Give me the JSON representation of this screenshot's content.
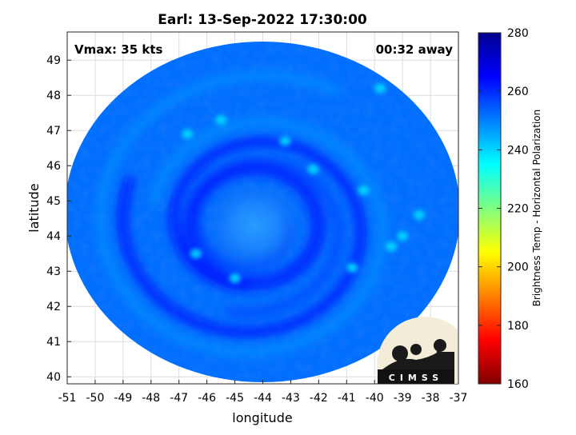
{
  "chart_data": {
    "type": "heatmap",
    "title": "Earl: 13-Sep-2022 17:30:00",
    "xlabel": "longitude",
    "ylabel": "latitude",
    "xlim": [
      -51,
      -37
    ],
    "ylim": [
      39.8,
      49.8
    ],
    "xticks": [
      -51,
      -50,
      -49,
      -48,
      -47,
      -46,
      -45,
      -44,
      -43,
      -42,
      -41,
      -40,
      -39,
      -38,
      -37
    ],
    "yticks": [
      40,
      41,
      42,
      43,
      44,
      45,
      46,
      47,
      48,
      49
    ],
    "grid": true,
    "annotations": {
      "vmax": "Vmax: 35 kts",
      "time_offset": "00:32 away"
    },
    "colorbar": {
      "label": "Brightness Temp - Horizontal Polarization",
      "range": [
        160,
        280
      ],
      "ticks": [
        160,
        180,
        200,
        220,
        240,
        260,
        280
      ],
      "colormap": "jet"
    },
    "field": {
      "description_values": "brightness temperature in K",
      "background_value": 252,
      "center": {
        "lon": -44.3,
        "lat": 44.3
      },
      "eye_value": 245,
      "eyewall_value": 262,
      "band_values": [
        256,
        264,
        248
      ]
    }
  },
  "logo": {
    "text": "CIMSS",
    "name": "cimss-logo"
  },
  "colors": {
    "jet_stops": [
      "#00008f",
      "#0000ff",
      "#0080ff",
      "#00ffff",
      "#80ff80",
      "#ffff00",
      "#ff8000",
      "#ff0000",
      "#800000"
    ]
  }
}
